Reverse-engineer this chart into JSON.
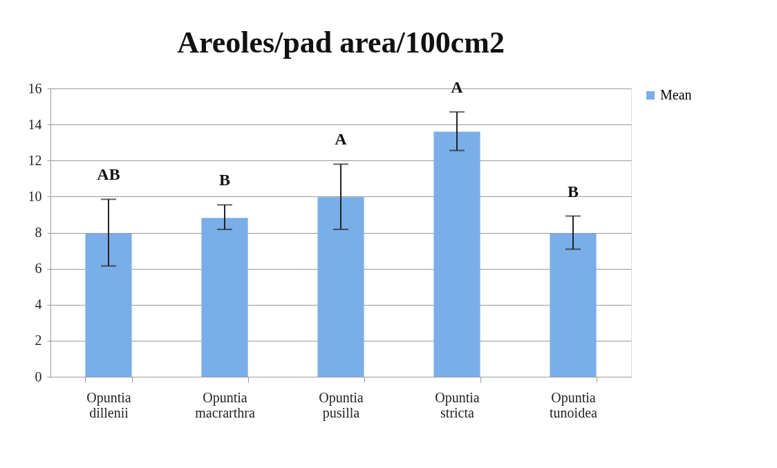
{
  "chart_data": {
    "type": "bar",
    "title": "Areoles/pad area/100cm2",
    "categories": [
      "Opuntia dillenii",
      "Opuntia macrarthra",
      "Opuntia pusilla",
      "Opuntia stricta",
      "Opuntia tunoidea"
    ],
    "series": [
      {
        "name": "Mean",
        "color": "#7aaee8",
        "values": [
          7.95,
          8.82,
          9.97,
          13.6,
          7.95
        ],
        "errors": [
          [
            6.15,
            9.85
          ],
          [
            8.18,
            9.54
          ],
          [
            8.18,
            11.8
          ],
          [
            12.56,
            14.7
          ],
          [
            7.08,
            8.92
          ]
        ]
      }
    ],
    "ylim": [
      0,
      16
    ],
    "yticks": [
      0,
      2,
      4,
      6,
      8,
      10,
      12,
      14,
      16
    ],
    "grid": "y",
    "legend": "right",
    "annotations": [
      "AB",
      "B",
      "A",
      "A",
      "B"
    ]
  }
}
